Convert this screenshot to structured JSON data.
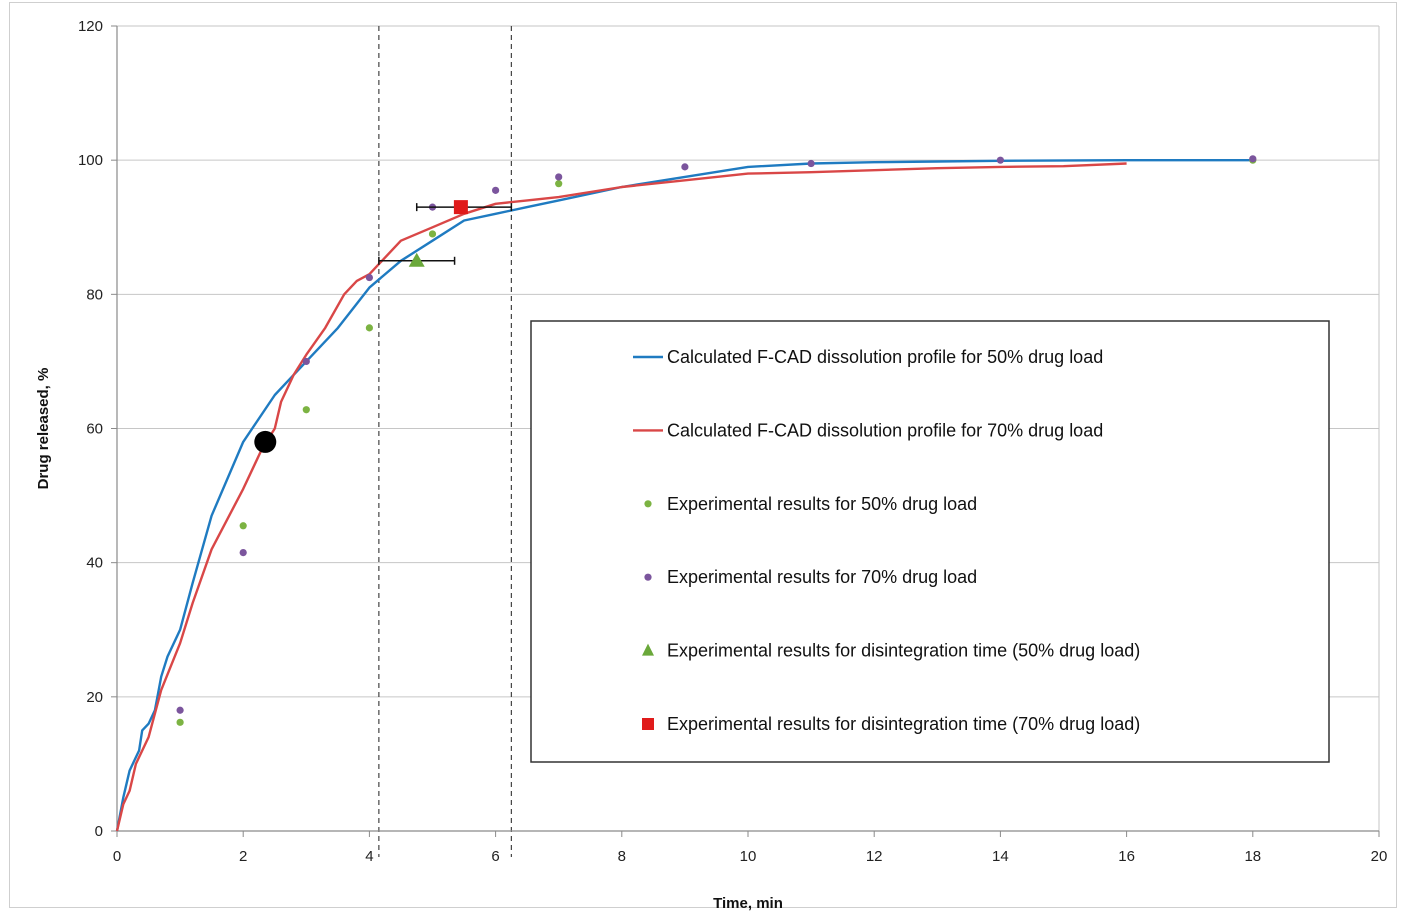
{
  "chart_data": {
    "type": "line",
    "title": "",
    "xlabel": "Time, min",
    "ylabel": "Drug released, %",
    "xlim": [
      0,
      20
    ],
    "ylim": [
      0,
      120
    ],
    "xticks": [
      0,
      2,
      4,
      6,
      8,
      10,
      12,
      14,
      16,
      18,
      20
    ],
    "yticks": [
      0,
      20,
      40,
      60,
      80,
      100,
      120
    ],
    "grid": "horizontal",
    "legend_position": "lower-right",
    "reference_lines_x": [
      4.15,
      6.25
    ],
    "series": [
      {
        "name": "Calculated F-CAD dissolution profile for 50% drug load",
        "kind": "line",
        "color": "#1f7bc1",
        "x": [
          0,
          0.1,
          0.2,
          0.35,
          0.4,
          0.5,
          0.6,
          0.7,
          0.8,
          1.0,
          1.2,
          1.5,
          2.0,
          2.5,
          3.0,
          3.5,
          4.0,
          4.5,
          5.0,
          5.5,
          6.0,
          6.5,
          7.0,
          8.0,
          9.0,
          10.0,
          11.0,
          12.0,
          13.0,
          14.0,
          16.0,
          18.0
        ],
        "y": [
          0,
          5,
          9,
          12,
          15,
          16,
          18,
          23,
          26,
          30,
          37,
          47,
          58,
          65,
          70,
          75,
          81,
          85,
          88,
          91,
          92,
          93,
          94,
          96,
          97.5,
          99,
          99.5,
          99.7,
          99.8,
          99.9,
          100,
          100
        ]
      },
      {
        "name": "Calculated F-CAD dissolution profile for 70% drug load",
        "kind": "line",
        "color": "#d94747",
        "x": [
          0,
          0.1,
          0.2,
          0.3,
          0.5,
          0.7,
          1.0,
          1.2,
          1.5,
          2.0,
          2.3,
          2.5,
          2.6,
          2.8,
          3.0,
          3.3,
          3.6,
          3.8,
          4.0,
          4.5,
          5.0,
          5.5,
          6.0,
          6.5,
          7.0,
          8.0,
          9.0,
          10.0,
          11.0,
          12.0,
          13.0,
          14.0,
          15.0,
          16.0
        ],
        "y": [
          0,
          4,
          6,
          10,
          14,
          21,
          28,
          34,
          42,
          51,
          57,
          60,
          64,
          68,
          71,
          75,
          80,
          82,
          83,
          88,
          90,
          92,
          93.5,
          94,
          94.5,
          96,
          97,
          98,
          98.2,
          98.5,
          98.8,
          99,
          99.1,
          99.5
        ]
      },
      {
        "name": "Experimental results for 50% drug load",
        "kind": "scatter",
        "marker": "circle",
        "color": "#7cb342",
        "x": [
          1,
          2,
          3,
          4,
          5,
          7,
          18
        ],
        "y": [
          16.2,
          45.5,
          62.8,
          75,
          89,
          96.5,
          100
        ]
      },
      {
        "name": "Experimental results for 70% drug load",
        "kind": "scatter",
        "marker": "circle",
        "color": "#7b559d",
        "x": [
          1,
          2,
          3,
          4,
          5,
          6,
          7,
          9,
          11,
          14,
          18
        ],
        "y": [
          18,
          41.5,
          70,
          82.5,
          93,
          95.5,
          97.5,
          99,
          99.5,
          100,
          100.2
        ]
      },
      {
        "name": "Experimental results for disintegration time (50% drug load)",
        "kind": "scatter",
        "marker": "triangle",
        "color": "#6aa83a",
        "x": [
          4.75
        ],
        "y": [
          85
        ],
        "x_error": [
          [
            4.15,
            5.35
          ]
        ]
      },
      {
        "name": "Experimental results for disintegration time (70% drug load)",
        "kind": "scatter",
        "marker": "square",
        "color": "#e01b1b",
        "x": [
          5.45
        ],
        "y": [
          93
        ],
        "x_error": [
          [
            4.75,
            6.25
          ]
        ]
      },
      {
        "kind": "scatter",
        "marker": "large-circle",
        "color": "#000000",
        "x": [
          2.35
        ],
        "y": [
          58
        ]
      }
    ]
  }
}
